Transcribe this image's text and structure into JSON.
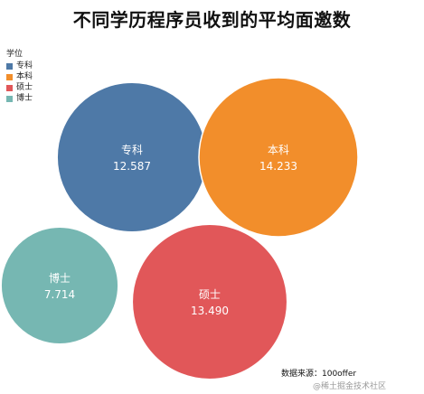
{
  "chart_data": {
    "type": "bubble",
    "title": "不同学历程序员收到的平均面邀数",
    "legend_title": "学位",
    "legend_position": "top-left",
    "categories": [
      "专科",
      "本科",
      "硕士",
      "博士"
    ],
    "series": [
      {
        "name": "专科",
        "value": 12.587,
        "value_label": "12.587",
        "color": "#4e79a7"
      },
      {
        "name": "本科",
        "value": 14.233,
        "value_label": "14.233",
        "color": "#f28e2b"
      },
      {
        "name": "硕士",
        "value": 13.49,
        "value_label": "13.490",
        "color": "#e15759"
      },
      {
        "name": "博士",
        "value": 7.714,
        "value_label": "7.714",
        "color": "#76b7b2"
      }
    ]
  },
  "footer": {
    "source": "数据来源：100offer",
    "watermark": "@稀土掘金技术社区"
  }
}
